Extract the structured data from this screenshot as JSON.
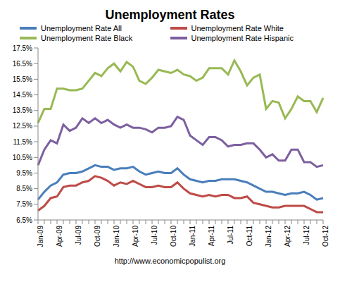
{
  "chart_data": {
    "type": "line",
    "title": "Unemployment Rates",
    "annotation": "http://www.economicpopulist.org",
    "categories": [
      "Jan-09",
      null,
      null,
      "Apr-09",
      null,
      null,
      "Jul-09",
      null,
      null,
      "Oct-09",
      null,
      null,
      "Jan-10",
      null,
      null,
      "Apr-10",
      null,
      null,
      "Jul-10",
      null,
      null,
      "Oct-10",
      null,
      null,
      "Jan-11",
      null,
      null,
      "Apr-11",
      null,
      null,
      "Jul-11",
      null,
      null,
      "Oct-11",
      null,
      null,
      "Jan-12",
      null,
      null,
      "Apr-12",
      null,
      null,
      "Jul-12",
      null,
      null,
      "Oct-12"
    ],
    "series": [
      {
        "name": "Unemployment Rate All",
        "color": "#4a7ebb",
        "values": [
          7.8,
          8.3,
          8.7,
          8.9,
          9.4,
          9.5,
          9.5,
          9.6,
          9.8,
          10.0,
          9.9,
          9.9,
          9.7,
          9.8,
          9.8,
          9.9,
          9.6,
          9.4,
          9.5,
          9.6,
          9.5,
          9.5,
          9.8,
          9.4,
          9.1,
          9.0,
          8.9,
          9.0,
          9.0,
          9.1,
          9.1,
          9.1,
          9.0,
          8.9,
          8.7,
          8.5,
          8.3,
          8.3,
          8.2,
          8.1,
          8.2,
          8.2,
          8.3,
          8.1,
          7.8,
          7.9
        ]
      },
      {
        "name": "Unemployment Rate White",
        "color": "#be4b48",
        "values": [
          7.1,
          7.4,
          7.9,
          8.0,
          8.6,
          8.7,
          8.7,
          8.9,
          9.0,
          9.3,
          9.2,
          9.0,
          8.7,
          8.9,
          8.8,
          9.0,
          8.8,
          8.6,
          8.6,
          8.7,
          8.6,
          8.6,
          8.9,
          8.5,
          8.2,
          8.1,
          8.0,
          8.1,
          8.0,
          8.1,
          8.1,
          7.9,
          7.9,
          8.0,
          7.6,
          7.5,
          7.4,
          7.3,
          7.3,
          7.4,
          7.4,
          7.4,
          7.4,
          7.2,
          7.0,
          7.0
        ]
      },
      {
        "name": "Unemployment Rate Black",
        "color": "#98b954",
        "values": [
          12.7,
          13.6,
          13.6,
          14.9,
          14.9,
          14.8,
          14.8,
          14.9,
          15.4,
          15.9,
          15.7,
          16.2,
          16.5,
          16.0,
          16.6,
          16.3,
          15.4,
          15.2,
          15.6,
          16.1,
          16.0,
          15.9,
          16.1,
          15.8,
          15.7,
          15.4,
          15.6,
          16.2,
          16.2,
          16.2,
          15.8,
          16.7,
          16.0,
          15.1,
          15.6,
          15.8,
          13.6,
          14.1,
          14.0,
          13.0,
          13.6,
          14.4,
          14.1,
          14.1,
          13.4,
          14.3
        ]
      },
      {
        "name": "Unemployment Rate Hispanic",
        "color": "#7d5fa0",
        "values": [
          10.0,
          11.0,
          11.6,
          11.4,
          12.6,
          12.2,
          12.4,
          13.0,
          12.7,
          13.0,
          12.7,
          12.9,
          12.6,
          12.4,
          12.6,
          12.4,
          12.4,
          12.3,
          12.1,
          12.4,
          12.4,
          12.5,
          13.1,
          12.9,
          11.9,
          11.6,
          11.3,
          11.8,
          11.8,
          11.6,
          11.2,
          11.3,
          11.3,
          11.4,
          11.4,
          11.0,
          10.5,
          10.7,
          10.3,
          10.3,
          11.0,
          11.0,
          10.2,
          10.2,
          9.9,
          10.0
        ]
      }
    ],
    "ylim": [
      6.5,
      17.5
    ],
    "yticks": [
      {
        "value": 6.5,
        "label": "6.5%"
      },
      {
        "value": 7.5,
        "label": "7.5%"
      },
      {
        "value": 8.5,
        "label": "8.5%"
      },
      {
        "value": 9.5,
        "label": "9.5%"
      },
      {
        "value": 10.5,
        "label": "10.5%"
      },
      {
        "value": 11.5,
        "label": "11.5%"
      },
      {
        "value": 12.5,
        "label": "12.5%"
      },
      {
        "value": 13.5,
        "label": "13.5%"
      },
      {
        "value": 14.5,
        "label": "14.5%"
      },
      {
        "value": 15.5,
        "label": "15.5%"
      },
      {
        "value": 16.5,
        "label": "16.5%"
      },
      {
        "value": 17.5,
        "label": "17.5%"
      }
    ],
    "grid": false,
    "legend": "top"
  }
}
